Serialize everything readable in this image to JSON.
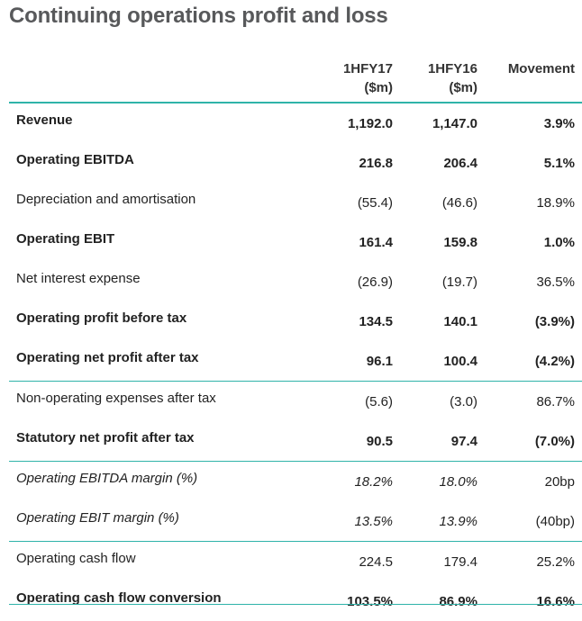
{
  "title": "Continuing operations profit and loss",
  "columns": {
    "col1_line1": "1HFY17",
    "col1_line2": "($m)",
    "col2_line1": "1HFY16",
    "col2_line2": "($m)",
    "col3": "Movement"
  },
  "rows": [
    {
      "label": "Revenue",
      "v1": "1,192.0",
      "v2": "1,147.0",
      "v3": "3.9%",
      "style": "bold"
    },
    {
      "label": "Operating EBITDA",
      "v1": "216.8",
      "v2": "206.4",
      "v3": "5.1%",
      "style": "bold"
    },
    {
      "label": "Depreciation and amortisation",
      "v1": "(55.4)",
      "v2": "(46.6)",
      "v3": "18.9%",
      "style": "normal"
    },
    {
      "label": "Operating EBIT",
      "v1": "161.4",
      "v2": "159.8",
      "v3": "1.0%",
      "style": "bold"
    },
    {
      "label": "Net interest expense",
      "v1": "(26.9)",
      "v2": "(19.7)",
      "v3": "36.5%",
      "style": "normal"
    },
    {
      "label": "Operating profit before tax",
      "v1": "134.5",
      "v2": "140.1",
      "v3": "(3.9%)",
      "style": "bold"
    },
    {
      "label": "Operating net profit after tax",
      "v1": "96.1",
      "v2": "100.4",
      "v3": "(4.2%)",
      "style": "bold"
    },
    {
      "label": "Non-operating expenses after tax",
      "v1": "(5.6)",
      "v2": "(3.0)",
      "v3": "86.7%",
      "style": "normal"
    },
    {
      "label": "Statutory net profit after tax",
      "v1": "90.5",
      "v2": "97.4",
      "v3": "(7.0%)",
      "style": "bold"
    },
    {
      "label": "Operating EBITDA margin (%)",
      "v1": "18.2%",
      "v2": "18.0%",
      "v3": "20bp",
      "style": "italic"
    },
    {
      "label": "Operating EBIT margin (%)",
      "v1": "13.5%",
      "v2": "13.9%",
      "v3": "(40bp)",
      "style": "italic"
    },
    {
      "label": "Operating cash flow",
      "v1": "224.5",
      "v2": "179.4",
      "v3": "25.2%",
      "style": "normal"
    },
    {
      "label": "Operating cash flow conversion",
      "v1": "103.5%",
      "v2": "86.9%",
      "v3": "16.6%",
      "style": "bold"
    }
  ],
  "colors": {
    "rule": "#2fb3a9",
    "title": "#58595b"
  }
}
